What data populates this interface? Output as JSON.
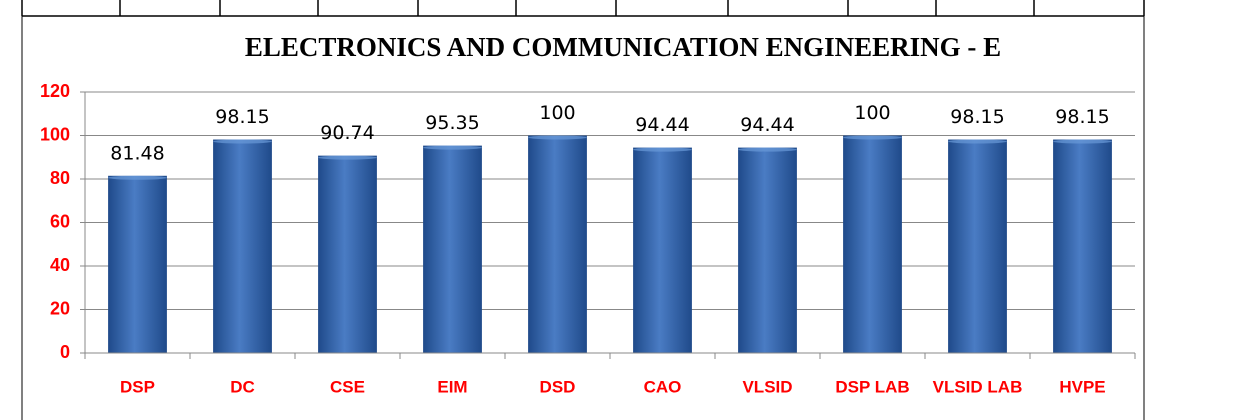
{
  "chart_data": {
    "type": "bar",
    "title": "ELECTRONICS AND COMMUNICATION ENGINEERING - E",
    "categories": [
      "DSP",
      "DC",
      "CSE",
      "EIM",
      "DSD",
      "CAO",
      "VLSID",
      "DSP LAB",
      "VLSID LAB",
      "HVPE"
    ],
    "values": [
      81.48,
      98.15,
      90.74,
      95.35,
      100,
      94.44,
      94.44,
      100,
      98.15,
      98.15
    ],
    "color": "#4a7cc4",
    "label_color": "#ff0000",
    "ylim": [
      0,
      120
    ],
    "yticks": [
      0,
      20,
      40,
      60,
      80,
      100,
      120
    ],
    "grid": true
  }
}
